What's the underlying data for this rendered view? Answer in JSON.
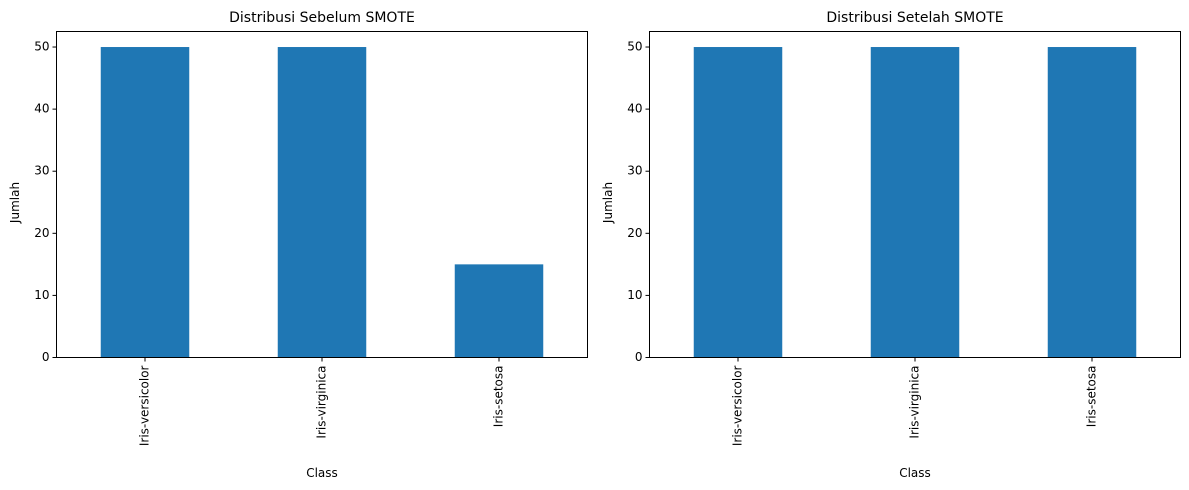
{
  "chart_data": [
    {
      "type": "bar",
      "title": "Distribusi Sebelum SMOTE",
      "xlabel": "Class",
      "ylabel": "Jumlah",
      "categories": [
        "Iris-versicolor",
        "Iris-virginica",
        "Iris-setosa"
      ],
      "values": [
        50,
        50,
        15
      ],
      "ylim": [
        0,
        52.5
      ],
      "yticks": [
        0,
        10,
        20,
        30,
        40,
        50
      ],
      "grid": false,
      "color": "#1f77b4"
    },
    {
      "type": "bar",
      "title": "Distribusi Setelah SMOTE",
      "xlabel": "Class",
      "ylabel": "Jumlah",
      "categories": [
        "Iris-versicolor",
        "Iris-virginica",
        "Iris-setosa"
      ],
      "values": [
        50,
        50,
        50
      ],
      "ylim": [
        0,
        52.5
      ],
      "yticks": [
        0,
        10,
        20,
        30,
        40,
        50
      ],
      "grid": false,
      "color": "#1f77b4"
    }
  ]
}
